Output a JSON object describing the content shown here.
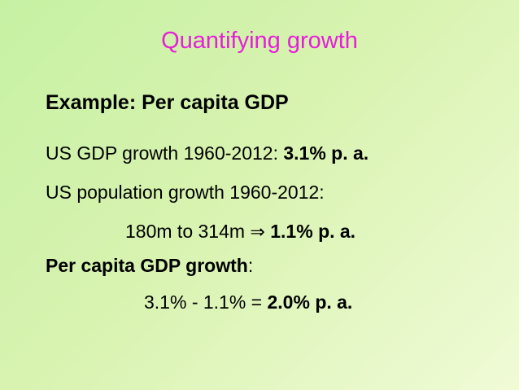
{
  "title": {
    "text": "Quantifying growth",
    "color": "#e61fd9"
  },
  "subtitle": "Example: Per capita GDP",
  "lines": [
    {
      "text": "US GDP growth 1960-2012: ",
      "emphasis": "3.1% p. a."
    },
    {
      "text": "US population growth 1960-2012:"
    },
    {
      "text": "180m to 314m ",
      "arrow": "⇒",
      "emphasis": "1.1% p. a."
    },
    {
      "emphasis": "Per capita GDP growth",
      "text": ":"
    },
    {
      "text": "3.1% - 1.1% = ",
      "emphasis": "2.0% p. a."
    }
  ]
}
